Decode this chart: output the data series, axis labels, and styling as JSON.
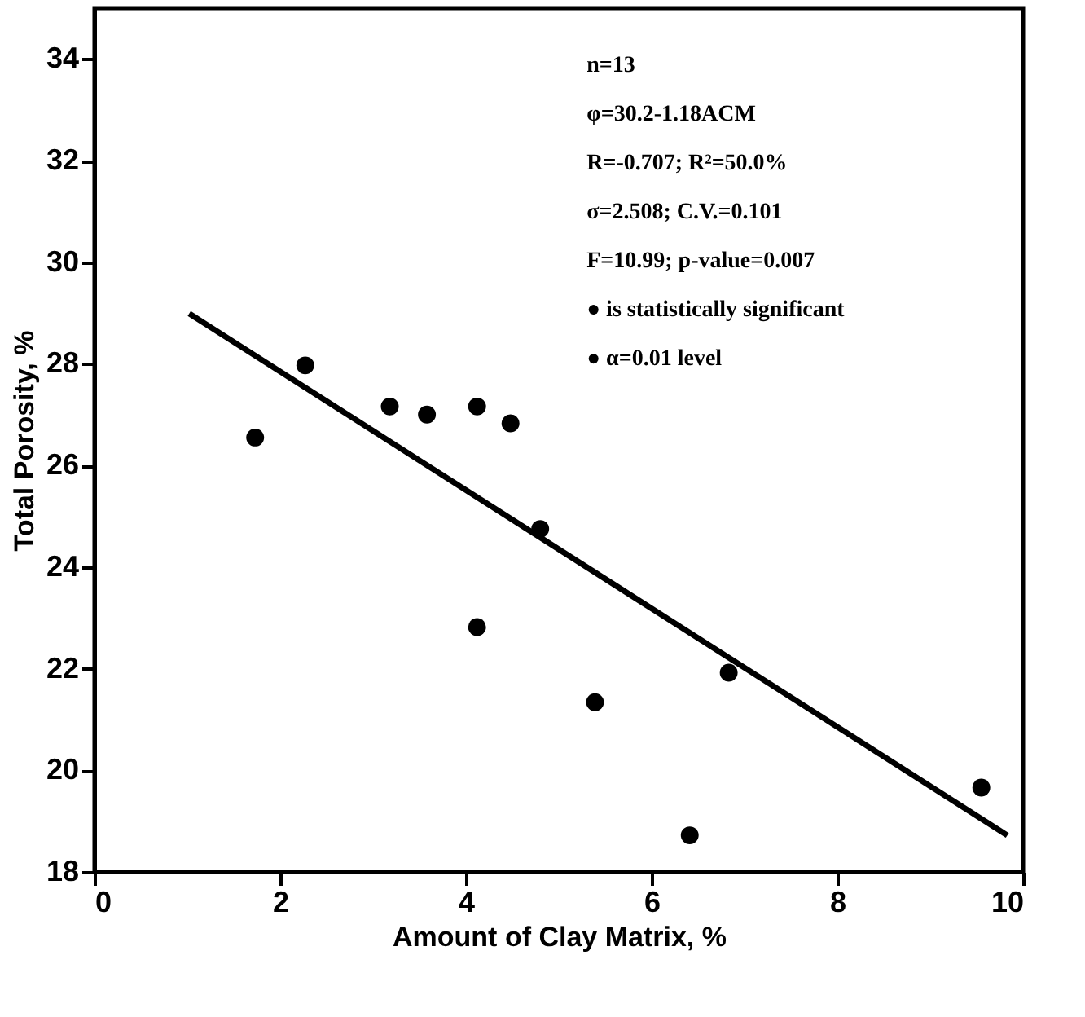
{
  "chart_data": {
    "type": "scatter",
    "xlabel": "Amount of Clay Matrix, %",
    "ylabel": "Total Porosity, %",
    "xlim": [
      0,
      10
    ],
    "xticks": [
      0,
      2,
      4,
      6,
      8,
      10
    ],
    "ylim": [
      18,
      35
    ],
    "yticks": [
      18,
      20,
      22,
      24,
      26,
      28,
      30,
      32,
      34
    ],
    "grid": false,
    "series": [
      {
        "marker": "circle",
        "color": "#000000",
        "x": [
          1.73,
          2.27,
          3.18,
          3.58,
          4.12,
          4.48,
          4.8,
          4.12,
          5.39,
          6.41,
          6.83,
          9.55
        ],
        "values": [
          26.55,
          27.97,
          27.16,
          27.0,
          27.16,
          26.83,
          24.75,
          22.82,
          21.34,
          18.72,
          21.92,
          19.66
        ]
      },
      {
        "type": "line",
        "line_style": "solid",
        "color": "#000000",
        "x": [
          1.02,
          9.83
        ],
        "values": [
          28.99,
          18.72
        ]
      }
    ],
    "annotations": [
      "n=13",
      "φ=30.2-1.18ACM",
      "R=-0.707;  R²=50.0%",
      "σ=2.508;  C.V.=0.101",
      "F=10.99;  p-value=0.007",
      "● is statistically significant",
      "● α=0.01 level"
    ]
  }
}
